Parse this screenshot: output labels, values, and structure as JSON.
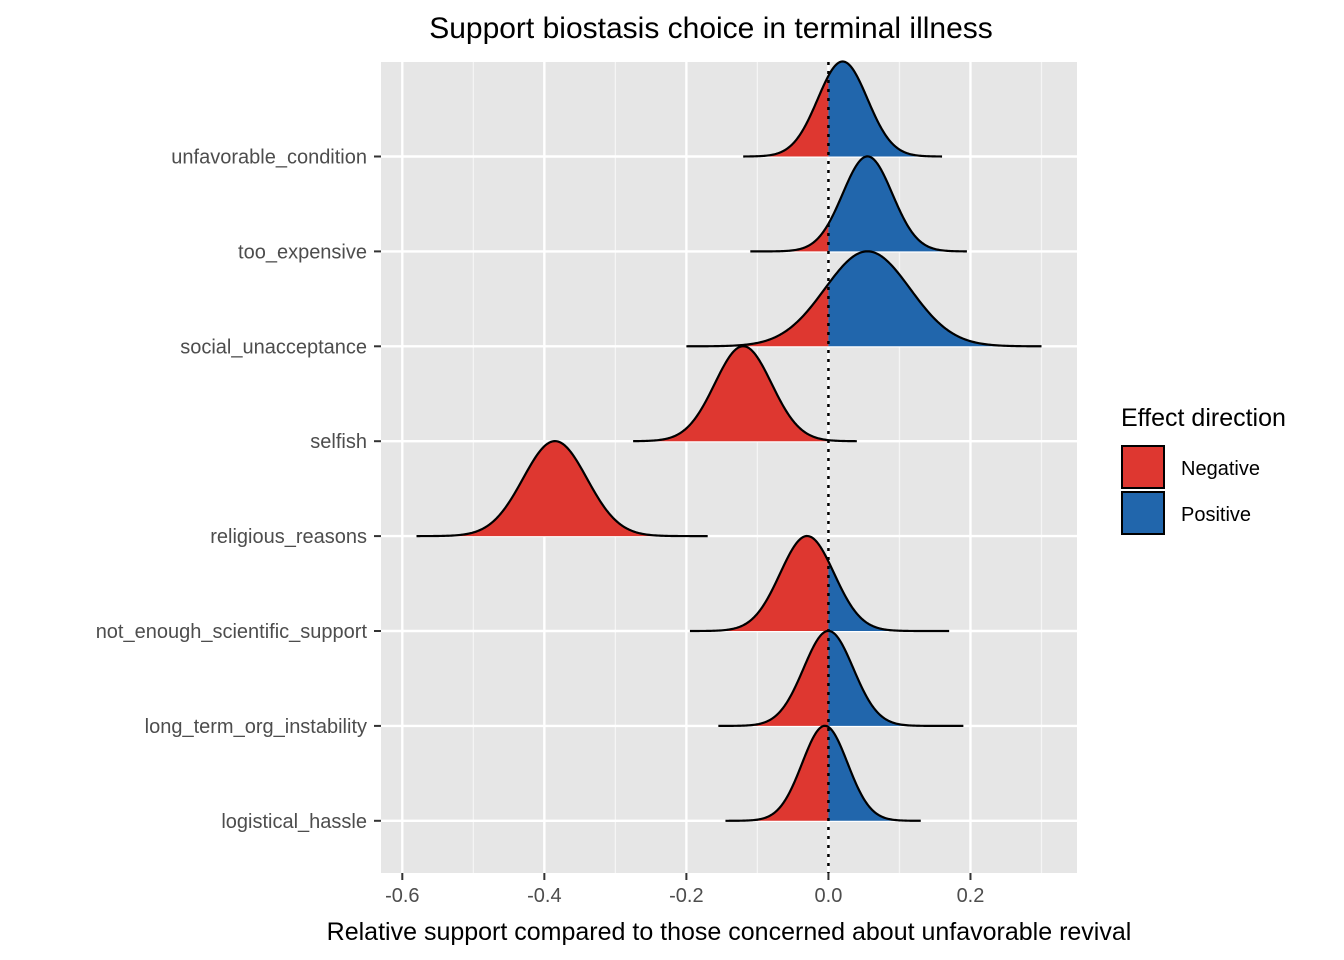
{
  "chart_data": {
    "type": "ridgeline-density",
    "title": "Support biostasis choice in terminal illness",
    "xlabel": "Relative support compared to those concerned about unfavorable revival",
    "ylabel": "",
    "xlim": [
      -0.63,
      0.35
    ],
    "x_ticks": [
      -0.6,
      -0.4,
      -0.2,
      0.0,
      0.2
    ],
    "x_tick_labels": [
      "-0.6",
      "-0.4",
      "-0.2",
      "0.0",
      "0.2"
    ],
    "reference_line_x": 0.0,
    "grid": true,
    "legend": {
      "title": "Effect direction",
      "placement": "right",
      "entries": [
        {
          "label": "Negative",
          "color": "#de3730"
        },
        {
          "label": "Positive",
          "color": "#2166ac"
        }
      ]
    },
    "categories": [
      "unfavorable_condition",
      "too_expensive",
      "social_unacceptance",
      "selfish",
      "religious_reasons",
      "not_enough_scientific_support",
      "long_term_org_instability",
      "logistical_hassle"
    ],
    "series": [
      {
        "category": "unfavorable_condition",
        "mean": 0.02,
        "sd": 0.035,
        "min": -0.12,
        "max": 0.16
      },
      {
        "category": "too_expensive",
        "mean": 0.055,
        "sd": 0.035,
        "min": -0.11,
        "max": 0.195
      },
      {
        "category": "social_unacceptance",
        "mean": 0.055,
        "sd": 0.06,
        "min": -0.2,
        "max": 0.3
      },
      {
        "category": "selfish",
        "mean": -0.12,
        "sd": 0.04,
        "min": -0.275,
        "max": 0.04
      },
      {
        "category": "religious_reasons",
        "mean": -0.385,
        "sd": 0.045,
        "min": -0.58,
        "max": -0.17
      },
      {
        "category": "not_enough_scientific_support",
        "mean": -0.03,
        "sd": 0.038,
        "min": -0.195,
        "max": 0.17
      },
      {
        "category": "long_term_org_instability",
        "mean": 0.0,
        "sd": 0.035,
        "min": -0.155,
        "max": 0.19
      },
      {
        "category": "logistical_hassle",
        "mean": -0.005,
        "sd": 0.032,
        "min": -0.145,
        "max": 0.13
      }
    ]
  }
}
